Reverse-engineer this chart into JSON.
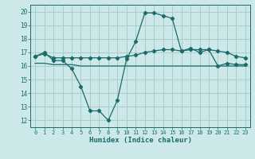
{
  "title": "",
  "xlabel": "Humidex (Indice chaleur)",
  "ylabel": "",
  "bg_color": "#cce8e8",
  "grid_color": "#aacccc",
  "line_color": "#1a6b6b",
  "xlim": [
    -0.5,
    23.5
  ],
  "ylim": [
    11.5,
    20.5
  ],
  "xticks": [
    0,
    1,
    2,
    3,
    4,
    5,
    6,
    7,
    8,
    9,
    10,
    11,
    12,
    13,
    14,
    15,
    16,
    17,
    18,
    19,
    20,
    21,
    22,
    23
  ],
  "yticks": [
    12,
    13,
    14,
    15,
    16,
    17,
    18,
    19,
    20
  ],
  "series1_x": [
    0,
    1,
    2,
    3,
    4,
    5,
    6,
    7,
    8,
    9,
    10,
    11,
    12,
    13,
    14,
    15,
    16,
    17,
    18,
    19,
    20,
    21,
    22,
    23
  ],
  "series1_y": [
    16.7,
    17.0,
    16.4,
    16.4,
    15.8,
    14.5,
    12.7,
    12.7,
    12.0,
    13.5,
    16.5,
    17.8,
    19.9,
    19.9,
    19.7,
    19.5,
    17.1,
    17.3,
    17.0,
    17.2,
    16.0,
    16.2,
    16.1,
    16.1
  ],
  "series2_x": [
    0,
    1,
    2,
    3,
    4,
    5,
    6,
    7,
    8,
    9,
    10,
    11,
    12,
    13,
    14,
    15,
    16,
    17,
    18,
    19,
    20,
    21,
    22,
    23
  ],
  "series2_y": [
    16.7,
    16.9,
    16.6,
    16.6,
    16.6,
    16.6,
    16.6,
    16.6,
    16.6,
    16.6,
    16.7,
    16.8,
    17.0,
    17.1,
    17.2,
    17.2,
    17.1,
    17.2,
    17.2,
    17.2,
    17.1,
    17.0,
    16.7,
    16.6
  ],
  "series3_x": [
    0,
    1,
    2,
    3,
    4,
    5,
    6,
    7,
    8,
    9,
    10,
    11,
    12,
    13,
    14,
    15,
    16,
    17,
    22,
    23
  ],
  "series3_y": [
    16.2,
    16.2,
    16.1,
    16.1,
    16.1,
    16.0,
    16.0,
    16.0,
    16.0,
    16.0,
    16.0,
    16.0,
    16.0,
    16.0,
    16.0,
    16.0,
    16.0,
    16.0,
    16.0,
    16.0
  ]
}
